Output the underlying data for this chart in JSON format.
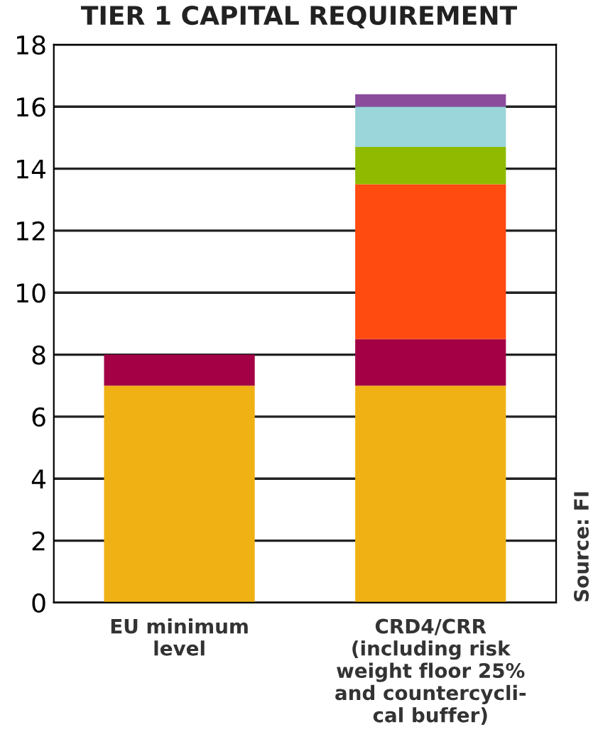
{
  "chart_data": {
    "type": "bar",
    "title": "TIER 1 CAPITAL REQUIREMENT",
    "stacked": true,
    "categories": [
      "EU minimum\nlevel",
      "CRD4/CRR\n(including risk\nweight floor 25%\nand countercycli-\ncal buffer)"
    ],
    "series": [
      {
        "color": "#f0b114",
        "values": [
          7,
          7
        ]
      },
      {
        "color": "#a30045",
        "values": [
          1,
          1.5
        ]
      },
      {
        "color": "#ff4a10",
        "values": [
          null,
          5.0
        ]
      },
      {
        "color": "#8fba00",
        "values": [
          null,
          1.2
        ]
      },
      {
        "color": "#9ad6da",
        "values": [
          null,
          1.3
        ]
      },
      {
        "color": "#8b4c9c",
        "values": [
          null,
          0.4
        ]
      }
    ],
    "ylim": [
      0,
      18
    ],
    "yticks": [
      0,
      2,
      4,
      6,
      8,
      10,
      12,
      14,
      16,
      18
    ],
    "grid": "y",
    "legend": false,
    "annotations": [
      "Source: FI"
    ]
  }
}
